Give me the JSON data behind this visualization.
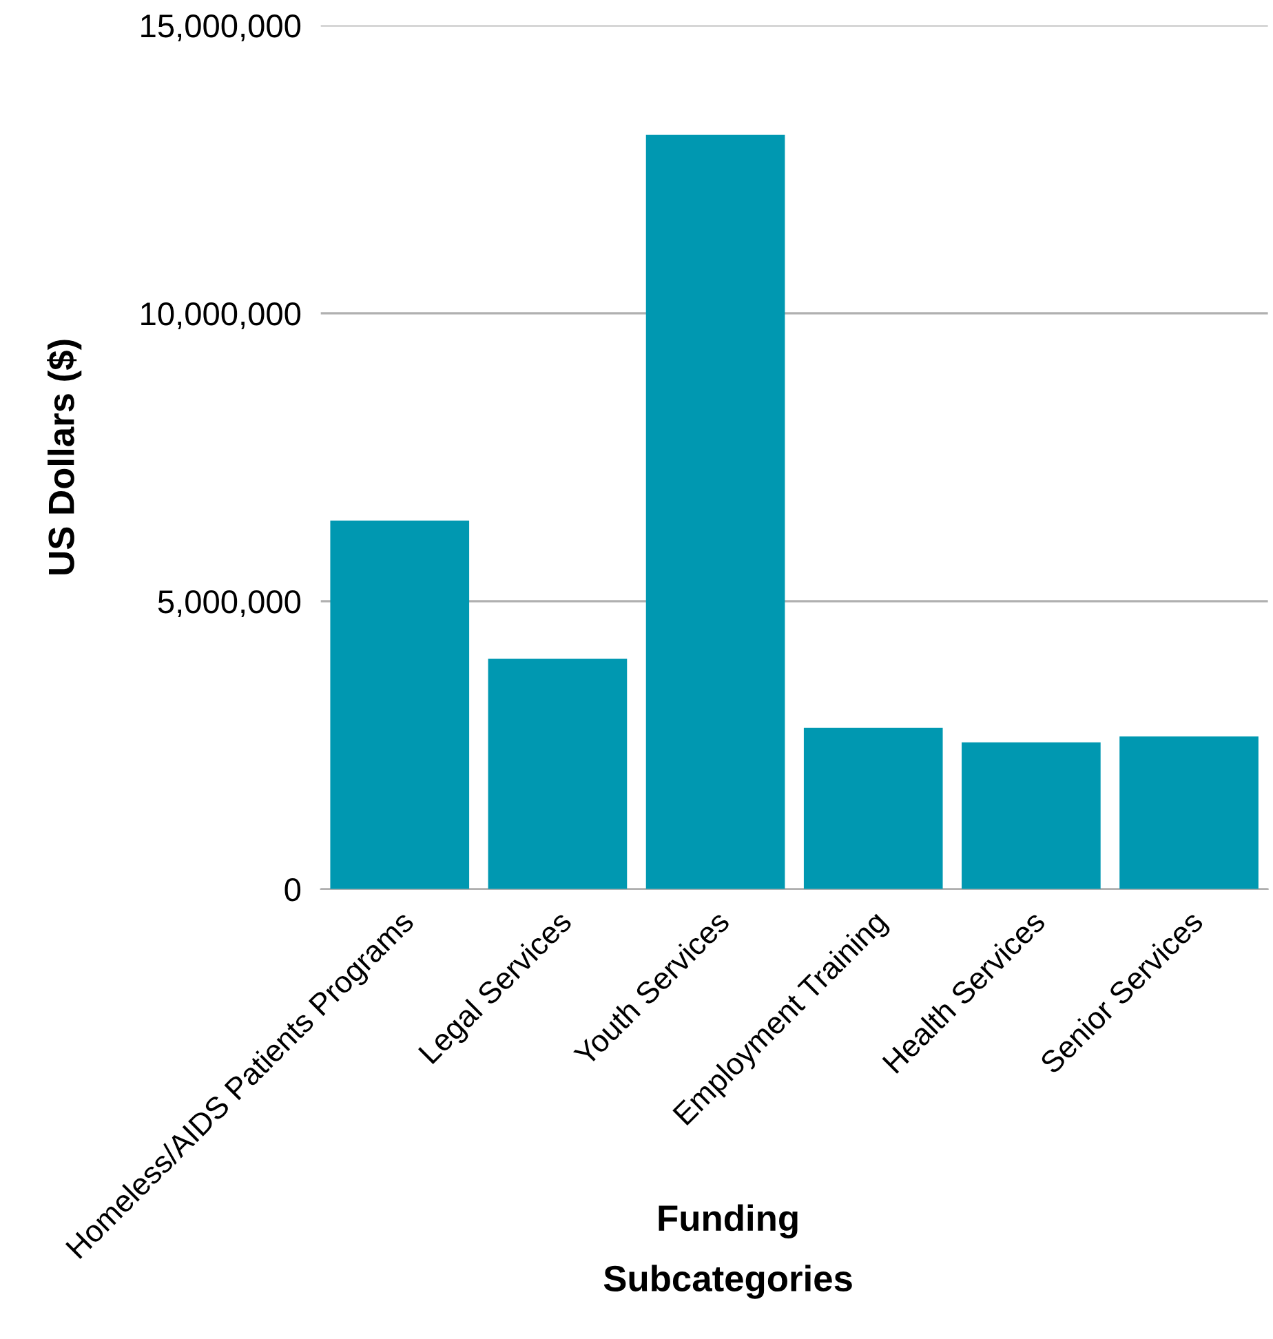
{
  "chart_data": {
    "type": "bar",
    "xlabel": "Funding\nSubcategories",
    "ylabel": "US Dollars ($)",
    "categories": [
      "Homeless/AIDS Patients Programs",
      "Legal Services",
      "Youth Services",
      "Employment Training",
      "Health Services",
      "Senior Services"
    ],
    "values": [
      6400000,
      4000000,
      13100000,
      2800000,
      2550000,
      2650000
    ],
    "color": "#0098b1",
    "ylim": [
      0,
      15000000
    ],
    "yticks": [
      {
        "value": 0,
        "label": "0"
      },
      {
        "value": 5000000,
        "label": "5,000,000"
      },
      {
        "value": 10000000,
        "label": "10,000,000"
      },
      {
        "value": 15000000,
        "label": "15,000,000"
      }
    ],
    "grid": "y",
    "legend": false
  }
}
